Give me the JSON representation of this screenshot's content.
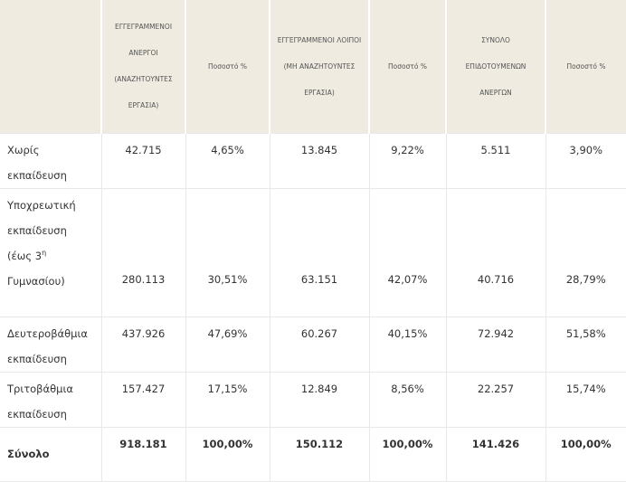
{
  "table": {
    "columns": [
      [
        "ΕΓΓΕΓΡΑΜΜΕΝΟΙ",
        "ΑΝΕΡΓΟΙ",
        "(ΑΝΑΖΗΤΟΥΝΤΕΣ",
        "ΕΡΓΑΣΙΑ)"
      ],
      [
        "Ποσοστό %"
      ],
      [
        "ΕΓΓΕΓΡΑΜΜΕΝΟΙ ΛΟΙΠΟΙ",
        "(ΜΗ ΑΝΑΖΗΤΟΥΝΤΕΣ",
        "ΕΡΓΑΣΙΑ)"
      ],
      [
        "Ποσοστό %"
      ],
      [
        "ΣΥΝΟΛΟ",
        "ΕΠΙΔΟΤΟΥΜΕΝΩΝ",
        "ΑΝΕΡΓΩΝ"
      ],
      [
        "Ποσοστό %"
      ]
    ],
    "rows": [
      {
        "label": [
          "Χωρίς",
          "εκπαίδευση"
        ],
        "cells": [
          "42.715",
          "4,65%",
          "13.845",
          "9,22%",
          "5.511",
          "3,90%"
        ]
      },
      {
        "label": [
          "Υποχρεωτική",
          "εκπαίδευση",
          [
            "(έως 3",
            "η"
          ],
          "Γυμνασίου)"
        ],
        "cells": [
          "280.113",
          "30,51%",
          "63.151",
          "42,07%",
          "40.716",
          "28,79%"
        ]
      },
      {
        "label": [
          "Δευτεροβάθμια",
          "εκπαίδευση"
        ],
        "cells": [
          "437.926",
          "47,69%",
          "60.267",
          "40,15%",
          "72.942",
          "51,58%"
        ]
      },
      {
        "label": [
          "Τριτοβάθμια",
          "εκπαίδευση"
        ],
        "cells": [
          "157.427",
          "17,15%",
          "12.849",
          "8,56%",
          "22.257",
          "15,74%"
        ]
      },
      {
        "label": [
          "Σύνολο"
        ],
        "cells": [
          "918.181",
          "100,00%",
          "150.112",
          "100,00%",
          "141.426",
          "100,00%"
        ]
      }
    ]
  }
}
